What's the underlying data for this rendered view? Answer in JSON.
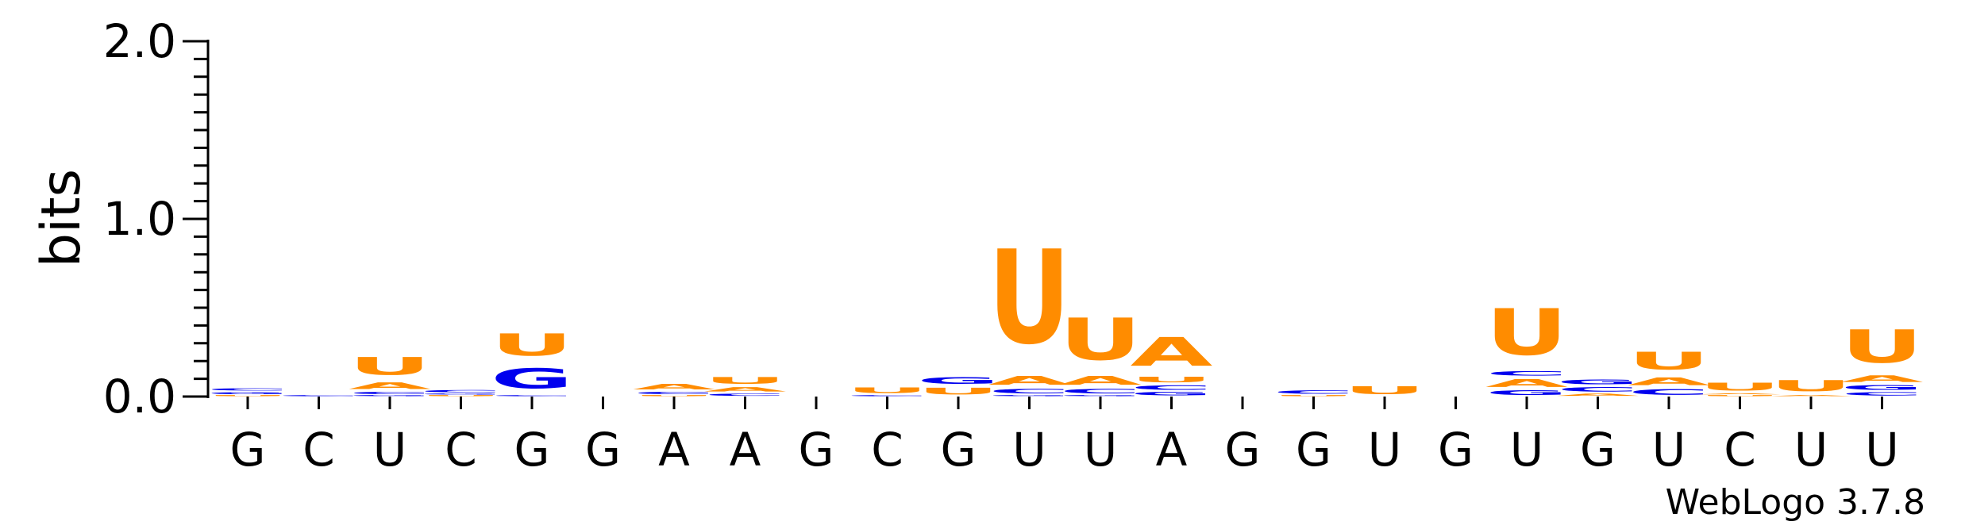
{
  "chart_data": {
    "type": "sequence-logo",
    "ylabel": "bits",
    "ylim": [
      0,
      2.0
    ],
    "yticks": [
      {
        "value": 0.0,
        "label": "0.0"
      },
      {
        "value": 1.0,
        "label": "1.0"
      },
      {
        "value": 2.0,
        "label": "2.0"
      }
    ],
    "colors": {
      "A": "#ff8c00",
      "U": "#ff8c00",
      "G": "#0000ee",
      "C": "#0000ee"
    },
    "positions": [
      {
        "label": "G",
        "stack": [
          {
            "base": "U",
            "bits": 0.01
          },
          {
            "base": "G",
            "bits": 0.02
          },
          {
            "base": "C",
            "bits": 0.02
          }
        ]
      },
      {
        "label": "C",
        "stack": [
          {
            "base": "C",
            "bits": 0.01
          }
        ]
      },
      {
        "label": "U",
        "stack": [
          {
            "base": "G",
            "bits": 0.01
          },
          {
            "base": "C",
            "bits": 0.02
          },
          {
            "base": "A",
            "bits": 0.06
          },
          {
            "base": "U",
            "bits": 0.16
          }
        ]
      },
      {
        "label": "C",
        "stack": [
          {
            "base": "U",
            "bits": 0.01
          },
          {
            "base": "G",
            "bits": 0.01
          },
          {
            "base": "C",
            "bits": 0.02
          }
        ]
      },
      {
        "label": "G",
        "stack": [
          {
            "base": "C",
            "bits": 0.01
          },
          {
            "base": "G",
            "bits": 0.18
          },
          {
            "base": "U",
            "bits": 0.2
          }
        ]
      },
      {
        "label": "G",
        "stack": []
      },
      {
        "label": "A",
        "stack": [
          {
            "base": "U",
            "bits": 0.01
          },
          {
            "base": "C",
            "bits": 0.02
          },
          {
            "base": "A",
            "bits": 0.05
          }
        ]
      },
      {
        "label": "A",
        "stack": [
          {
            "base": "C",
            "bits": 0.02
          },
          {
            "base": "A",
            "bits": 0.04
          },
          {
            "base": "U",
            "bits": 0.06
          }
        ]
      },
      {
        "label": "G",
        "stack": []
      },
      {
        "label": "C",
        "stack": [
          {
            "base": "C",
            "bits": 0.01
          },
          {
            "base": "U",
            "bits": 0.05
          }
        ]
      },
      {
        "label": "G",
        "stack": [
          {
            "base": "U",
            "bits": 0.06
          },
          {
            "base": "G",
            "bits": 0.06
          }
        ]
      },
      {
        "label": "U",
        "stack": [
          {
            "base": "G",
            "bits": 0.01
          },
          {
            "base": "C",
            "bits": 0.04
          },
          {
            "base": "A",
            "bits": 0.08
          },
          {
            "base": "U",
            "bits": 0.85
          }
        ]
      },
      {
        "label": "U",
        "stack": [
          {
            "base": "G",
            "bits": 0.01
          },
          {
            "base": "C",
            "bits": 0.04
          },
          {
            "base": "A",
            "bits": 0.08
          },
          {
            "base": "U",
            "bits": 0.38
          }
        ]
      },
      {
        "label": "A",
        "stack": [
          {
            "base": "G",
            "bits": 0.03
          },
          {
            "base": "C",
            "bits": 0.04
          },
          {
            "base": "U",
            "bits": 0.05
          },
          {
            "base": "A",
            "bits": 0.26
          }
        ]
      },
      {
        "label": "G",
        "stack": []
      },
      {
        "label": "G",
        "stack": [
          {
            "base": "U",
            "bits": 0.01
          },
          {
            "base": "C",
            "bits": 0.03
          }
        ]
      },
      {
        "label": "U",
        "stack": [
          {
            "base": "U",
            "bits": 0.07
          }
        ]
      },
      {
        "label": "G",
        "stack": []
      },
      {
        "label": "U",
        "stack": [
          {
            "base": "G",
            "bits": 0.04
          },
          {
            "base": "A",
            "bits": 0.07
          },
          {
            "base": "C",
            "bits": 0.04
          },
          {
            "base": "U",
            "bits": 0.42
          }
        ]
      },
      {
        "label": "G",
        "stack": [
          {
            "base": "A",
            "bits": 0.02
          },
          {
            "base": "C",
            "bits": 0.04
          },
          {
            "base": "G",
            "bits": 0.04
          }
        ]
      },
      {
        "label": "U",
        "stack": [
          {
            "base": "C",
            "bits": 0.05
          },
          {
            "base": "A",
            "bits": 0.07
          },
          {
            "base": "U",
            "bits": 0.16
          }
        ]
      },
      {
        "label": "C",
        "stack": [
          {
            "base": "U",
            "bits": 0.01
          },
          {
            "base": "A",
            "bits": 0.01
          },
          {
            "base": "U",
            "bits": 0.07
          }
        ]
      },
      {
        "label": "U",
        "stack": [
          {
            "base": "A",
            "bits": 0.01
          },
          {
            "base": "U",
            "bits": 0.1
          }
        ]
      },
      {
        "label": "U",
        "stack": [
          {
            "base": "C",
            "bits": 0.03
          },
          {
            "base": "G",
            "bits": 0.04
          },
          {
            "base": "A",
            "bits": 0.06
          },
          {
            "base": "U",
            "bits": 0.3
          }
        ]
      }
    ]
  },
  "footer": "WebLogo 3.7.8"
}
